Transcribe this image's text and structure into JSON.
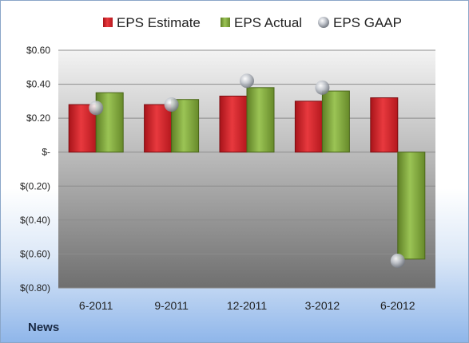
{
  "footer": {
    "label": "News"
  },
  "chart_data": {
    "type": "bar",
    "categories": [
      "6-2011",
      "9-2011",
      "12-2011",
      "3-2012",
      "6-2012"
    ],
    "series": [
      {
        "name": "EPS Estimate",
        "kind": "bar",
        "color": "#d9252b",
        "values": [
          0.28,
          0.28,
          0.33,
          0.3,
          0.32
        ]
      },
      {
        "name": "EPS Actual",
        "kind": "bar",
        "color": "#7fa73c",
        "values": [
          0.35,
          0.31,
          0.38,
          0.36,
          -0.63
        ]
      },
      {
        "name": "EPS GAAP",
        "kind": "marker",
        "color": "#b0b4bb",
        "values": [
          0.26,
          0.28,
          0.42,
          0.38,
          -0.64
        ]
      }
    ],
    "ylim": [
      -0.8,
      0.6
    ],
    "yticks": [
      0.6,
      0.4,
      0.2,
      0,
      -0.2,
      -0.4,
      -0.6,
      -0.8
    ],
    "ytick_labels": [
      "$0.60",
      "$0.40",
      "$0.20",
      "$-",
      "$(0.20)",
      "$(0.40)",
      "$(0.60)",
      "$(0.80)"
    ],
    "legend_position": "top",
    "grid": true
  }
}
